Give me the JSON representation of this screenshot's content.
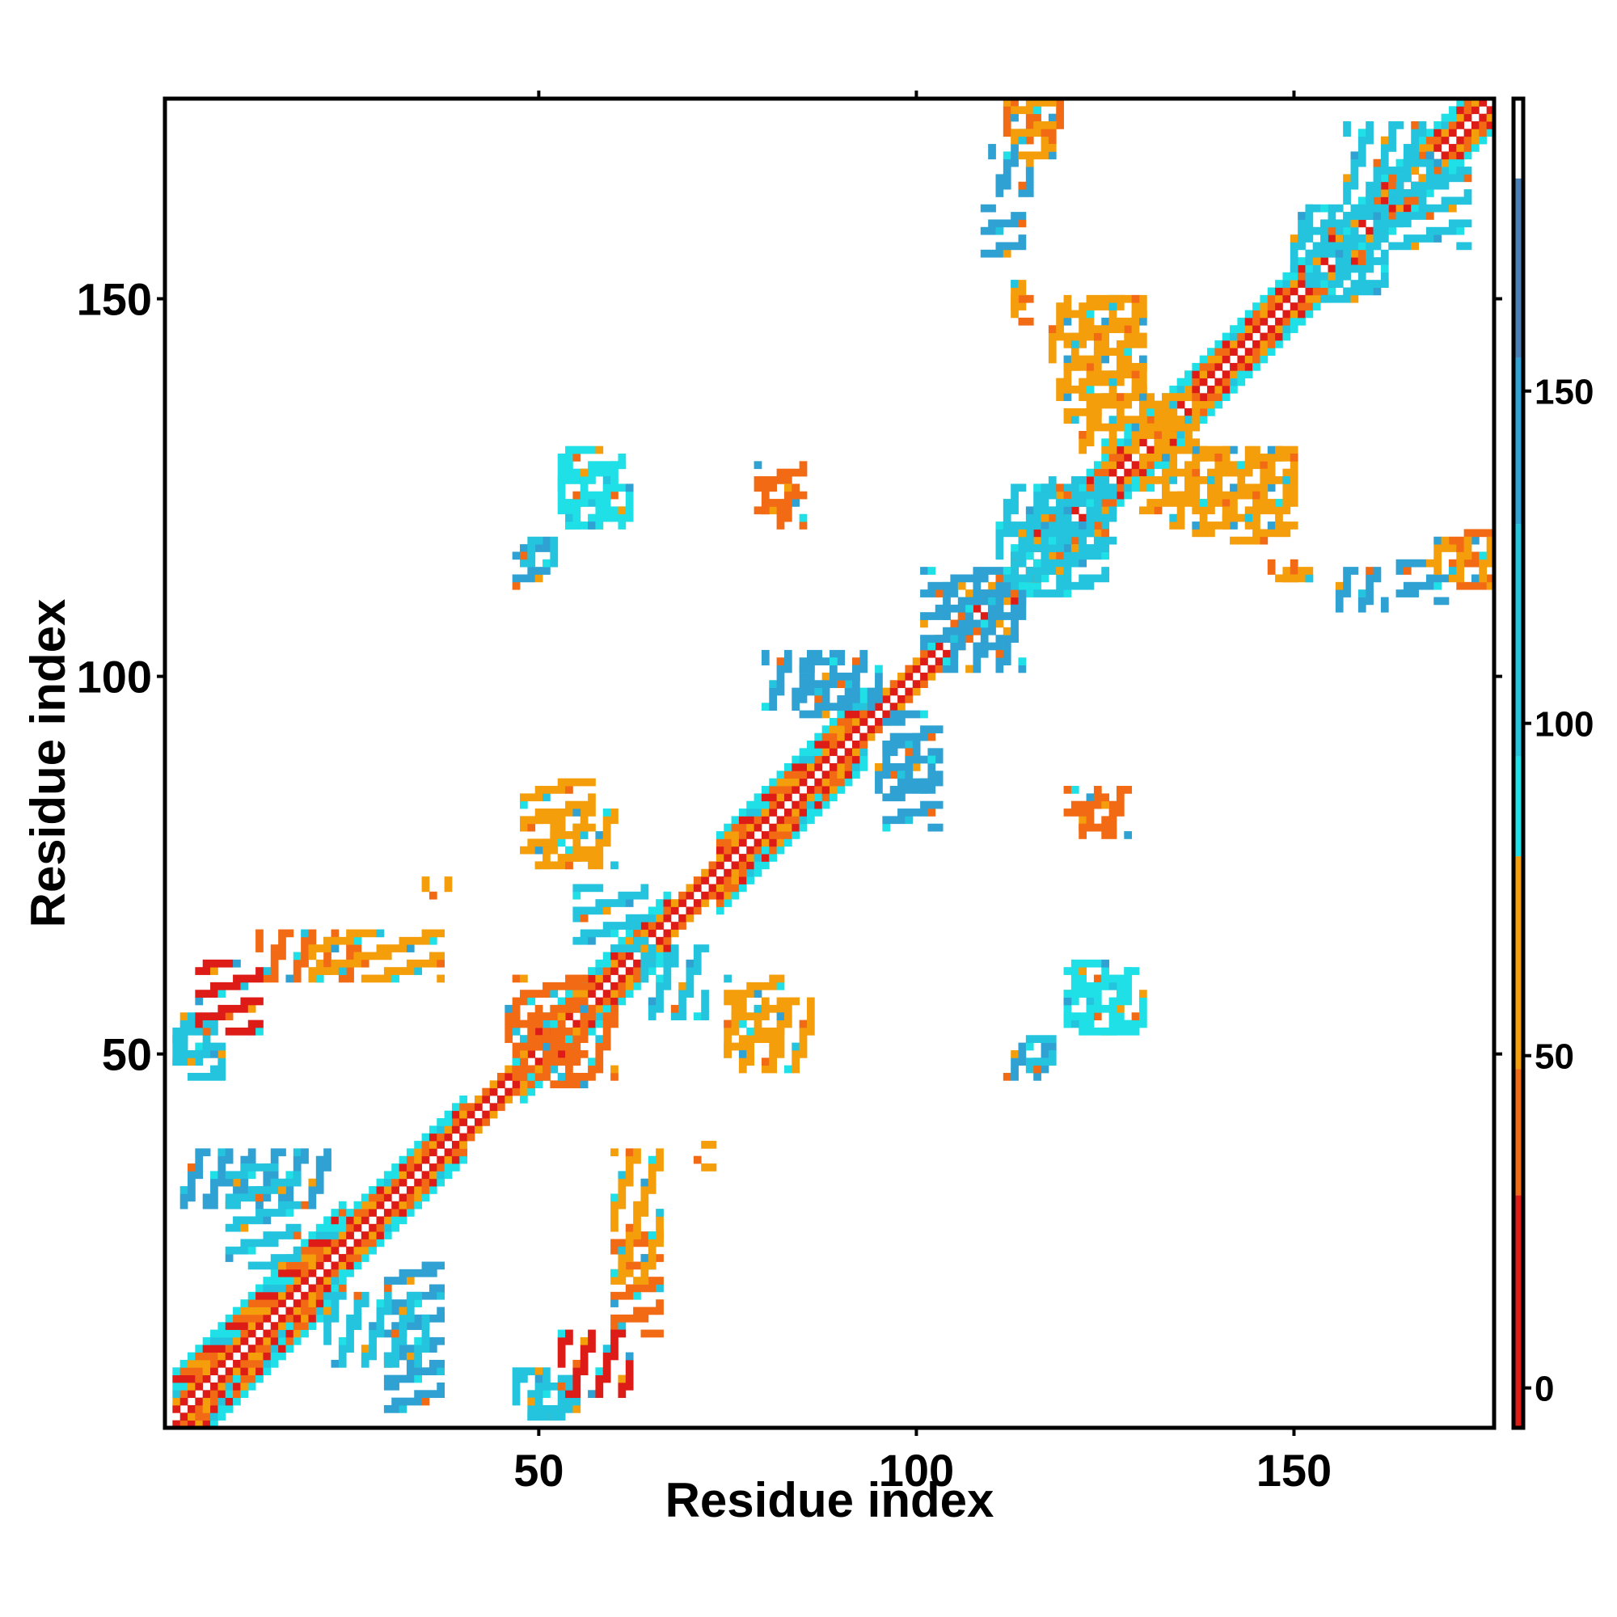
{
  "chart_data": {
    "type": "heatmap",
    "title": "",
    "xlabel": "Residue index",
    "ylabel": "Residue index",
    "xlim": [
      1,
      176
    ],
    "ylim": [
      1,
      176
    ],
    "grid": false,
    "x_ticks": [
      50,
      100,
      150
    ],
    "y_ticks": [
      50,
      100,
      150
    ],
    "x_tick_labels": [
      "50",
      "100",
      "150"
    ],
    "y_tick_labels": [
      "50",
      "100",
      "150"
    ],
    "colorbar": {
      "range": [
        -6,
        194
      ],
      "ticks": [
        0,
        50,
        100,
        150
      ],
      "tick_labels": [
        "0",
        "50",
        "100",
        "150"
      ],
      "bands": [
        {
          "from": -6,
          "to": 29,
          "color": "#dd1c18"
        },
        {
          "from": 29,
          "to": 48,
          "color": "#f26a14"
        },
        {
          "from": 48,
          "to": 80,
          "color": "#f59e0b"
        },
        {
          "from": 80,
          "to": 95,
          "color": "#1fe0e6"
        },
        {
          "from": 95,
          "to": 130,
          "color": "#24c4de"
        },
        {
          "from": 130,
          "to": 155,
          "color": "#2fa2d3"
        },
        {
          "from": 155,
          "to": 182,
          "color": "#4a7fb5"
        },
        {
          "from": 182,
          "to": 194,
          "color": "#ffffff"
        }
      ]
    },
    "color_key": {
      "red": "#dd1c18",
      "orange": "#f26a14",
      "amber": "#f59e0b",
      "cyan": "#1fe0e6",
      "sky": "#24c4de",
      "blue": "#2fa2d3",
      "steel": "#4a7fb5"
    },
    "diagonal_segments": [
      {
        "from": 2,
        "to": 24,
        "offsets": [
          -6,
          6
        ]
      },
      {
        "from": 24,
        "to": 40,
        "offsets": [
          -4,
          4
        ]
      },
      {
        "from": 40,
        "to": 48,
        "offsets": [
          -2,
          2
        ]
      },
      {
        "from": 48,
        "to": 67,
        "offsets": [
          -4,
          4
        ]
      },
      {
        "from": 67,
        "to": 74,
        "offsets": [
          -2,
          2
        ]
      },
      {
        "from": 74,
        "to": 93,
        "offsets": [
          -5,
          5
        ]
      },
      {
        "from": 93,
        "to": 113,
        "offsets": [
          -2,
          2
        ]
      },
      {
        "from": 113,
        "to": 133,
        "offsets": [
          -4,
          4
        ]
      },
      {
        "from": 133,
        "to": 176,
        "offsets": [
          -4,
          4
        ]
      }
    ],
    "contact_patches": [
      {
        "x": [
          13,
          26
        ],
        "y": [
          60,
          66
        ],
        "color": "orange"
      },
      {
        "x": [
          2,
          8
        ],
        "y": [
          49,
          55
        ],
        "color": "sky"
      },
      {
        "x": [
          3,
          22
        ],
        "y": [
          30,
          37
        ],
        "color": "blue"
      },
      {
        "x": [
          22,
          35
        ],
        "y": [
          9,
          18
        ],
        "color": "sky"
      },
      {
        "x": [
          47,
          53
        ],
        "y": [
          2,
          8
        ],
        "color": "sky"
      },
      {
        "x": [
          53,
          62
        ],
        "y": [
          5,
          13
        ],
        "color": "red"
      },
      {
        "x": [
          60,
          66
        ],
        "y": [
          20,
          37
        ],
        "color": "amber"
      },
      {
        "x": [
          46,
          60
        ],
        "y": [
          47,
          56
        ],
        "color": "orange"
      },
      {
        "x": [
          50,
          60
        ],
        "y": [
          75,
          82
        ],
        "color": "amber"
      },
      {
        "x": [
          64,
          72
        ],
        "y": [
          55,
          64
        ],
        "color": "sky"
      },
      {
        "x": [
          75,
          86
        ],
        "y": [
          48,
          57
        ],
        "color": "amber"
      },
      {
        "x": [
          80,
          95
        ],
        "y": [
          96,
          103
        ],
        "color": "blue"
      },
      {
        "x": [
          95,
          102
        ],
        "y": [
          85,
          92
        ],
        "color": "blue"
      },
      {
        "x": [
          104,
          114
        ],
        "y": [
          101,
          113
        ],
        "color": "blue"
      },
      {
        "x": [
          111,
          120
        ],
        "y": [
          113,
          125
        ],
        "color": "sky"
      },
      {
        "x": [
          117,
          125
        ],
        "y": [
          117,
          126
        ],
        "color": "sky"
      },
      {
        "x": [
          112,
          118
        ],
        "y": [
          47,
          51
        ],
        "color": "blue"
      },
      {
        "x": [
          120,
          130
        ],
        "y": [
          53,
          61
        ],
        "color": "cyan"
      },
      {
        "x": [
          122,
          128
        ],
        "y": [
          79,
          85
        ],
        "color": "orange"
      },
      {
        "x": [
          118,
          130
        ],
        "y": [
          137,
          150
        ],
        "color": "amber"
      },
      {
        "x": [
          133,
          150
        ],
        "y": [
          120,
          130
        ],
        "color": "amber"
      },
      {
        "x": [
          122,
          137
        ],
        "y": [
          130,
          137
        ],
        "color": "amber"
      },
      {
        "x": [
          110,
          115
        ],
        "y": [
          164,
          170
        ],
        "color": "blue"
      },
      {
        "x": [
          112,
          119
        ],
        "y": [
          171,
          177
        ],
        "color": "orange"
      },
      {
        "x": [
          147,
          152
        ],
        "y": [
          113,
          115
        ],
        "color": "orange"
      },
      {
        "x": [
          156,
          162
        ],
        "y": [
          109,
          114
        ],
        "color": "blue"
      },
      {
        "x": [
          169,
          176
        ],
        "y": [
          113,
          118
        ],
        "color": "amber"
      },
      {
        "x": [
          150,
          162
        ],
        "y": [
          152,
          162
        ],
        "color": "sky"
      },
      {
        "x": [
          157,
          168
        ],
        "y": [
          163,
          173
        ],
        "color": "sky"
      },
      {
        "x": [
          48,
          52
        ],
        "y": [
          115,
          118
        ],
        "color": "sky"
      },
      {
        "x": [
          53,
          62
        ],
        "y": [
          120,
          128
        ],
        "color": "cyan"
      },
      {
        "x": [
          80,
          85
        ],
        "y": [
          120,
          125
        ],
        "color": "orange"
      },
      {
        "x": [
          113,
          114
        ],
        "y": [
          148,
          152
        ],
        "color": "amber"
      },
      {
        "x": [
          35,
          38
        ],
        "y": [
          72,
          73
        ],
        "color": "amber"
      },
      {
        "x": [
          71,
          72
        ],
        "y": [
          35,
          36
        ],
        "color": "orange"
      }
    ]
  }
}
